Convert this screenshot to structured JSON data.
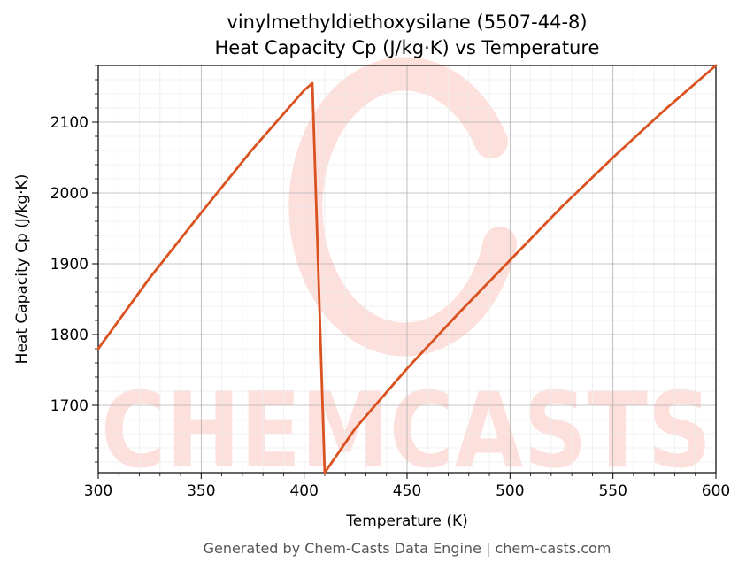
{
  "chart_data": {
    "type": "line",
    "title": "vinylmethyldiethoxysilane (5507-44-8)",
    "subtitle": "Heat Capacity Cp (J/kg·K) vs Temperature",
    "xlabel": "Temperature (K)",
    "ylabel": "Heat Capacity Cp (J/kg·K)",
    "xlim": [
      300,
      600
    ],
    "ylim": [
      1605,
      2180
    ],
    "xticks": [
      300,
      350,
      400,
      450,
      500,
      550,
      600
    ],
    "yticks": [
      1700,
      1800,
      1900,
      2000,
      2100
    ],
    "grid": true,
    "line_color": "#d95220",
    "watermark_color": "#fde0dc",
    "series": [
      {
        "x": [
          300,
          325,
          350,
          375,
          400,
          404,
          410,
          425,
          450,
          475,
          500,
          525,
          550,
          575,
          600
        ],
        "values": [
          1780,
          1880,
          1972,
          2062,
          2145,
          2155,
          1605,
          1668,
          1752,
          1830,
          1905,
          1980,
          2050,
          2117,
          2180
        ]
      }
    ]
  },
  "watermark": {
    "text": "CHEMCASTS"
  },
  "footer": {
    "text": "Generated by Chem-Casts Data Engine | chem-casts.com"
  }
}
